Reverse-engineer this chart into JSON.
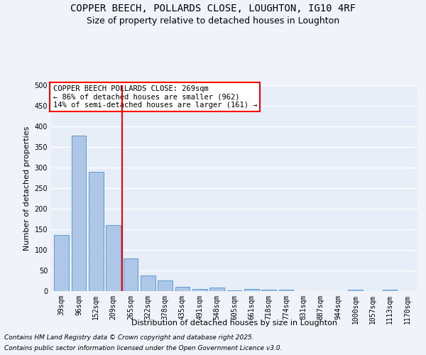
{
  "title_line1": "COPPER BEECH, POLLARDS CLOSE, LOUGHTON, IG10 4RF",
  "title_line2": "Size of property relative to detached houses in Loughton",
  "xlabel": "Distribution of detached houses by size in Loughton",
  "ylabel": "Number of detached properties",
  "categories": [
    "39sqm",
    "96sqm",
    "152sqm",
    "209sqm",
    "265sqm",
    "322sqm",
    "378sqm",
    "435sqm",
    "491sqm",
    "548sqm",
    "605sqm",
    "661sqm",
    "718sqm",
    "774sqm",
    "831sqm",
    "887sqm",
    "944sqm",
    "1000sqm",
    "1057sqm",
    "1113sqm",
    "1170sqm"
  ],
  "values": [
    137,
    378,
    290,
    160,
    79,
    38,
    26,
    11,
    6,
    8,
    2,
    5,
    4,
    4,
    0,
    0,
    0,
    3,
    0,
    3,
    0
  ],
  "bar_color": "#aec6e8",
  "bar_edge_color": "#5b9bd5",
  "vline_x_index": 4,
  "vline_color": "red",
  "annotation_text": "COPPER BEECH POLLARDS CLOSE: 269sqm\n← 86% of detached houses are smaller (962)\n14% of semi-detached houses are larger (161) →",
  "annotation_box_color": "white",
  "annotation_box_edge": "red",
  "ylim": [
    0,
    500
  ],
  "yticks": [
    0,
    50,
    100,
    150,
    200,
    250,
    300,
    350,
    400,
    450,
    500
  ],
  "background_color": "#f0f4fa",
  "plot_bg_color": "#e8eef8",
  "grid_color": "white",
  "footer_line1": "Contains HM Land Registry data © Crown copyright and database right 2025.",
  "footer_line2": "Contains public sector information licensed under the Open Government Licence v3.0.",
  "title_fontsize": 10,
  "subtitle_fontsize": 9,
  "axis_label_fontsize": 8,
  "tick_fontsize": 7,
  "annotation_fontsize": 7.5,
  "footer_fontsize": 6.5
}
